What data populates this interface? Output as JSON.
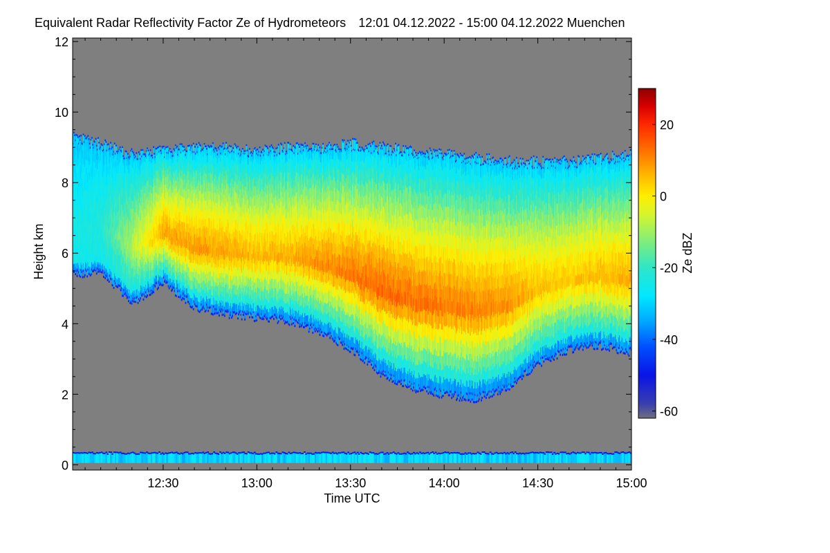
{
  "chart_data": {
    "type": "heatmap",
    "title": "Equivalent Radar Reflectivity Factor Ze of Hydrometeors",
    "time_range": "12:01 04.12.2022 - 15:00 04.12.2022",
    "location": "Muenchen",
    "xlabel": "Time UTC",
    "ylabel": "Height km",
    "x_start": "12:01",
    "x_end": "15:00",
    "xlim_minutes_utc": [
      721,
      900
    ],
    "ylim": [
      -0.15,
      12.1
    ],
    "x_ticks": [
      {
        "minute": 750,
        "label": "12:30"
      },
      {
        "minute": 780,
        "label": "13:00"
      },
      {
        "minute": 810,
        "label": "13:30"
      },
      {
        "minute": 840,
        "label": "14:00"
      },
      {
        "minute": 870,
        "label": "14:30"
      },
      {
        "minute": 900,
        "label": "15:00"
      }
    ],
    "y_ticks": [
      {
        "value": 0,
        "label": "0"
      },
      {
        "value": 2,
        "label": "2"
      },
      {
        "value": 4,
        "label": "4"
      },
      {
        "value": 6,
        "label": "6"
      },
      {
        "value": 8,
        "label": "8"
      },
      {
        "value": 10,
        "label": "10"
      },
      {
        "value": 12,
        "label": "12"
      }
    ],
    "colorbar": {
      "label": "Ze dBZ",
      "range": [
        -62,
        30
      ],
      "ticks": [
        {
          "value": 20,
          "label": "20"
        },
        {
          "value": 0,
          "label": "0"
        },
        {
          "value": -20,
          "label": "-20"
        },
        {
          "value": -40,
          "label": "-40"
        },
        {
          "value": -60,
          "label": "-60"
        }
      ],
      "colormap": [
        {
          "value": -62,
          "color": "#6e6e7e"
        },
        {
          "value": -58,
          "color": "#3a3fae"
        },
        {
          "value": -50,
          "color": "#0a14e6"
        },
        {
          "value": -42,
          "color": "#0050ff"
        },
        {
          "value": -35,
          "color": "#00a8ff"
        },
        {
          "value": -28,
          "color": "#00e8ff"
        },
        {
          "value": -20,
          "color": "#2ee6c8"
        },
        {
          "value": -12,
          "color": "#88ee74"
        },
        {
          "value": -5,
          "color": "#d8f52c"
        },
        {
          "value": 0,
          "color": "#ffee00"
        },
        {
          "value": 5,
          "color": "#ffc000"
        },
        {
          "value": 12,
          "color": "#ff7800"
        },
        {
          "value": 20,
          "color": "#ff2800"
        },
        {
          "value": 25,
          "color": "#d80000"
        },
        {
          "value": 30,
          "color": "#8c0000"
        }
      ]
    },
    "no_signal_color": "#7f7f7f",
    "echo_layer": {
      "description": "cloud/precipitation echo",
      "time_minutes": [
        721,
        730,
        740,
        750,
        760,
        770,
        780,
        790,
        800,
        810,
        820,
        830,
        840,
        850,
        860,
        870,
        880,
        890,
        900
      ],
      "top_km": [
        9.3,
        9.1,
        8.8,
        8.9,
        9.0,
        9.0,
        8.9,
        9.0,
        9.0,
        9.1,
        9.0,
        8.9,
        8.8,
        8.7,
        8.6,
        8.6,
        8.6,
        8.7,
        8.8
      ],
      "base_km": [
        5.4,
        5.5,
        4.6,
        5.2,
        4.5,
        4.3,
        4.2,
        4.1,
        3.8,
        3.3,
        2.6,
        2.2,
        2.0,
        1.9,
        2.2,
        2.9,
        3.3,
        3.4,
        3.2
      ],
      "core_dbz": [
        -25,
        -22,
        -8,
        8,
        9,
        8,
        6,
        7,
        10,
        12,
        14,
        13,
        12,
        11,
        10,
        5,
        4,
        6,
        7
      ]
    },
    "ground_clutter": {
      "base_km": 0.05,
      "top_km": 0.35,
      "dbz": -30
    }
  }
}
